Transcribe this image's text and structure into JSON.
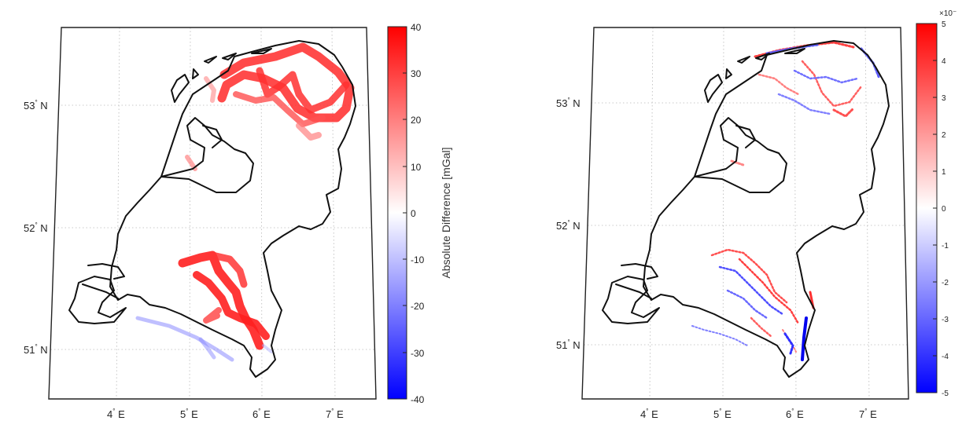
{
  "panels": [
    {
      "id": "left",
      "lat_labels": [
        "53",
        "52",
        "51"
      ],
      "lon_labels": [
        "4",
        "5",
        "6",
        "7"
      ],
      "lat_suffix": "N",
      "lon_suffix": "E",
      "colorbar": {
        "ticks": [
          "40",
          "30",
          "20",
          "10",
          "0",
          "-10",
          "-20",
          "-30",
          "-40"
        ],
        "label": "Absolute Difference [mGal]",
        "min": -40,
        "max": 40
      }
    },
    {
      "id": "right",
      "lat_labels": [
        "53",
        "52",
        "51"
      ],
      "lon_labels": [
        "4",
        "5",
        "6",
        "7"
      ],
      "lat_suffix": "N",
      "lon_suffix": "E",
      "colorbar": {
        "ticks": [
          "5",
          "4",
          "3",
          "2",
          "1",
          "0",
          "-1",
          "-2",
          "-3",
          "-4",
          "-5"
        ],
        "exponent_label": "×10⁻",
        "min": -5,
        "max": 5
      }
    }
  ],
  "colors": {
    "positive": "#ff0000",
    "zero": "#ffffff",
    "negative": "#0000ff"
  }
}
